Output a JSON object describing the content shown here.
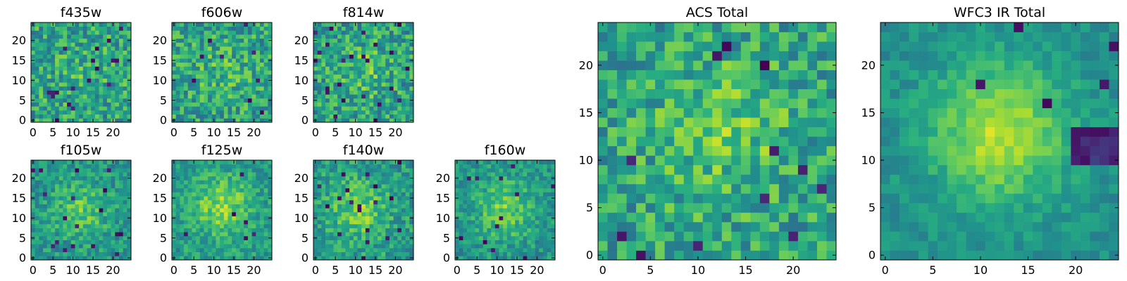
{
  "chart_data": [
    {
      "type": "heatmap",
      "title": "f435w",
      "grid": "25x25",
      "xlim": [
        0,
        24
      ],
      "ylim": [
        0,
        24
      ],
      "xticks": [
        "0",
        "5",
        "10",
        "15",
        "20"
      ],
      "yticks": [
        "0",
        "5",
        "10",
        "15",
        "20"
      ],
      "colormap": "viridis",
      "blob_center": [
        12,
        12
      ],
      "blob_amplitude": 0.06,
      "noise_amplitude": 0.45,
      "base_level": 0.58,
      "seed": 101,
      "dark_pixel_fraction": 0.03
    },
    {
      "type": "heatmap",
      "title": "f606w",
      "grid": "25x25",
      "xlim": [
        0,
        24
      ],
      "ylim": [
        0,
        24
      ],
      "xticks": [
        "0",
        "5",
        "10",
        "15",
        "20"
      ],
      "yticks": [
        "0",
        "5",
        "10",
        "15",
        "20"
      ],
      "colormap": "viridis",
      "blob_center": [
        12,
        12
      ],
      "blob_amplitude": 0.08,
      "noise_amplitude": 0.45,
      "base_level": 0.58,
      "seed": 202,
      "dark_pixel_fraction": 0.02
    },
    {
      "type": "heatmap",
      "title": "f814w",
      "grid": "25x25",
      "xlim": [
        0,
        24
      ],
      "ylim": [
        0,
        24
      ],
      "xticks": [
        "0",
        "5",
        "10",
        "15",
        "20"
      ],
      "yticks": [
        "0",
        "5",
        "10",
        "15",
        "20"
      ],
      "colormap": "viridis",
      "blob_center": [
        13,
        12
      ],
      "blob_amplitude": 0.14,
      "noise_amplitude": 0.45,
      "base_level": 0.56,
      "seed": 303,
      "dark_pixel_fraction": 0.03
    },
    {
      "type": "heatmap",
      "title": "f105w",
      "grid": "25x25",
      "xlim": [
        0,
        24
      ],
      "ylim": [
        0,
        24
      ],
      "xticks": [
        "0",
        "5",
        "10",
        "15",
        "20"
      ],
      "yticks": [
        "0",
        "5",
        "10",
        "15",
        "20"
      ],
      "colormap": "viridis",
      "blob_center": [
        12,
        12
      ],
      "blob_amplitude": 0.22,
      "noise_amplitude": 0.32,
      "base_level": 0.52,
      "seed": 404,
      "dark_pixel_fraction": 0.03
    },
    {
      "type": "heatmap",
      "title": "f125w",
      "grid": "25x25",
      "xlim": [
        0,
        24
      ],
      "ylim": [
        0,
        24
      ],
      "xticks": [
        "0",
        "5",
        "10",
        "15",
        "20"
      ],
      "yticks": [
        "0",
        "5",
        "10",
        "15",
        "20"
      ],
      "colormap": "viridis",
      "blob_center": [
        12,
        13
      ],
      "blob_amplitude": 0.28,
      "noise_amplitude": 0.3,
      "base_level": 0.55,
      "seed": 505,
      "dark_pixel_fraction": 0.02
    },
    {
      "type": "heatmap",
      "title": "f140w",
      "grid": "25x25",
      "xlim": [
        0,
        24
      ],
      "ylim": [
        0,
        24
      ],
      "xticks": [
        "0",
        "5",
        "10",
        "15",
        "20"
      ],
      "yticks": [
        "0",
        "5",
        "10",
        "15",
        "20"
      ],
      "colormap": "viridis",
      "blob_center": [
        11,
        12
      ],
      "blob_amplitude": 0.24,
      "noise_amplitude": 0.34,
      "base_level": 0.55,
      "seed": 606,
      "dark_pixel_fraction": 0.03
    },
    {
      "type": "heatmap",
      "title": "f160w",
      "grid": "25x25",
      "xlim": [
        0,
        24
      ],
      "ylim": [
        0,
        24
      ],
      "xticks": [
        "0",
        "5",
        "10",
        "15",
        "20"
      ],
      "yticks": [
        "0",
        "5",
        "10",
        "15",
        "20"
      ],
      "colormap": "viridis",
      "blob_center": [
        12,
        12
      ],
      "blob_amplitude": 0.26,
      "noise_amplitude": 0.3,
      "base_level": 0.52,
      "seed": 707,
      "dark_pixel_fraction": 0.03
    },
    {
      "type": "heatmap",
      "title": "ACS Total",
      "grid": "25x25",
      "xlim": [
        0,
        24
      ],
      "ylim": [
        0,
        24
      ],
      "xticks": [
        "0",
        "5",
        "10",
        "15",
        "20"
      ],
      "yticks": [
        "0",
        "5",
        "10",
        "15",
        "20"
      ],
      "colormap": "viridis",
      "blob_center": [
        13,
        13
      ],
      "blob_amplitude": 0.16,
      "noise_amplitude": 0.42,
      "base_level": 0.58,
      "seed": 808,
      "dark_pixel_fraction": 0.02
    },
    {
      "type": "heatmap",
      "title": "WFC3 IR Total",
      "grid": "25x25",
      "xlim": [
        0,
        24
      ],
      "ylim": [
        0,
        24
      ],
      "xticks": [
        "0",
        "5",
        "10",
        "15",
        "20"
      ],
      "yticks": [
        "0",
        "5",
        "10",
        "15",
        "20"
      ],
      "colormap": "viridis",
      "blob_center": [
        12,
        13
      ],
      "blob_amplitude": 0.4,
      "noise_amplitude": 0.18,
      "base_level": 0.5,
      "seed": 909,
      "dark_pixel_fraction": 0.01,
      "dark_region": {
        "x": [
          20,
          24
        ],
        "y": [
          10,
          13
        ]
      }
    }
  ]
}
